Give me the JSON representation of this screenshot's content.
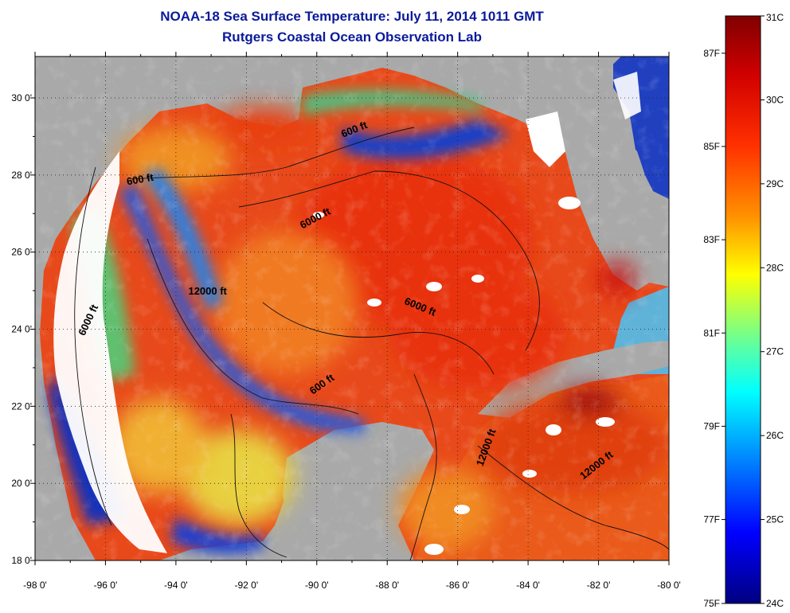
{
  "title": "NOAA-18 Sea Surface Temperature:  July 11, 2014 1011 GMT",
  "subtitle": "Rutgers Coastal Ocean Observation Lab",
  "colors": {
    "land": "#a9a9a9",
    "cloud": "#ffffff",
    "title": "#0a1a9a",
    "warm_core": "#e83a12",
    "cool_upwelling": "#0a32c8"
  },
  "map": {
    "lon_range": [
      -98,
      -80
    ],
    "lat_range": [
      18,
      31
    ],
    "lat_ticks": [
      "30 0'",
      "28 0'",
      "26 0'",
      "24 0'",
      "22 0'",
      "20 0'",
      "18 0'"
    ],
    "lon_ticks": [
      "-98 0'",
      "-96 0'",
      "-94 0'",
      "-92 0'",
      "-90 0'",
      "-88 0'",
      "-86 0'",
      "-84 0'",
      "-82 0'",
      "-80 0'"
    ],
    "contour_labels": [
      {
        "text": "600 ft",
        "lon": -88.9,
        "lat": 29.1,
        "angle": -22
      },
      {
        "text": "600 ft",
        "lon": -95.0,
        "lat": 27.8,
        "angle": -10
      },
      {
        "text": "6000 ft",
        "lon": -90.0,
        "lat": 26.8,
        "angle": -28
      },
      {
        "text": "12000 ft",
        "lon": -93.1,
        "lat": 24.9,
        "angle": 0
      },
      {
        "text": "6000 ft",
        "lon": -96.4,
        "lat": 24.2,
        "angle": -65
      },
      {
        "text": "6000 ft",
        "lon": -87.1,
        "lat": 24.5,
        "angle": 22
      },
      {
        "text": "600 ft",
        "lon": -89.8,
        "lat": 22.5,
        "angle": -35
      },
      {
        "text": "12000 ft",
        "lon": -85.1,
        "lat": 20.9,
        "angle": -70
      },
      {
        "text": "12000 ft",
        "lon": -82.0,
        "lat": 20.4,
        "angle": -38
      }
    ]
  },
  "colorbar": {
    "min_c": 24,
    "max_c": 31,
    "celsius_labels": [
      "31C",
      "30C",
      "29C",
      "28C",
      "27C",
      "26C",
      "25C",
      "24C"
    ],
    "fahrenheit_labels": [
      "87F",
      "85F",
      "83F",
      "81F",
      "79F",
      "77F",
      "75F"
    ]
  }
}
